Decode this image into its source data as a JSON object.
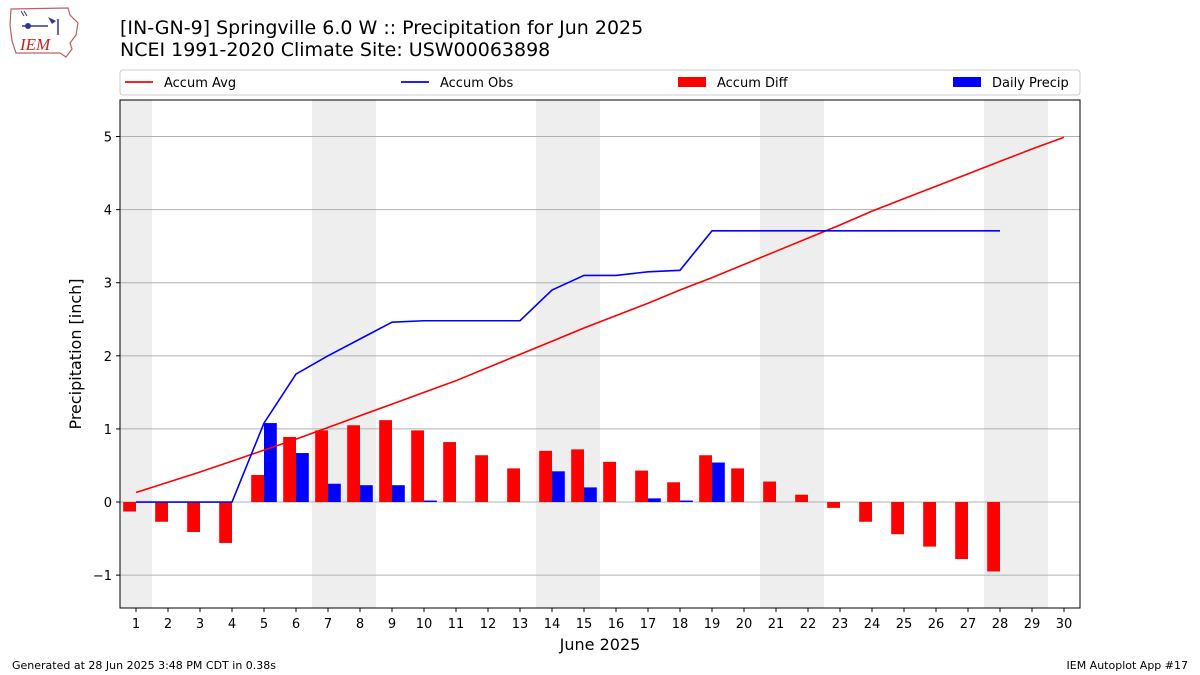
{
  "header": {
    "title_line1": "[IN-GN-9] Springville 6.0 W :: Precipitation for Jun 2025",
    "title_line2": "NCEI 1991-2020 Climate Site: USW00063898",
    "logo_text": "IEM"
  },
  "footer": {
    "generated": "Generated at 28 Jun 2025 3:48 PM CDT in 0.38s",
    "app": "IEM Autoplot App #17"
  },
  "chart_data": {
    "type": "bar",
    "xlabel": "June 2025",
    "ylabel": "Precipitation [inch]",
    "ylim": [
      -1.45,
      5.5
    ],
    "xlim": [
      0.5,
      30.5
    ],
    "yticks": [
      -1,
      0,
      1,
      2,
      3,
      4,
      5
    ],
    "ytick_labels": [
      "−1",
      "0",
      "1",
      "2",
      "3",
      "4",
      "5"
    ],
    "categories": [
      "1",
      "2",
      "3",
      "4",
      "5",
      "6",
      "7",
      "8",
      "9",
      "10",
      "11",
      "12",
      "13",
      "14",
      "15",
      "16",
      "17",
      "18",
      "19",
      "20",
      "21",
      "22",
      "23",
      "24",
      "25",
      "26",
      "27",
      "28",
      "29",
      "30"
    ],
    "grid": "horizontal",
    "legend_position": "top",
    "weekend_shading": [
      [
        0.5,
        1.5
      ],
      [
        6.5,
        8.5
      ],
      [
        13.5,
        15.5
      ],
      [
        20.5,
        22.5
      ],
      [
        27.5,
        29.5
      ]
    ],
    "colors": {
      "accum_avg": "#ff0000",
      "accum_obs": "#0000ff",
      "accum_diff": "#ff0000",
      "daily_precip": "#0000ff",
      "weekend": "#eeeeee",
      "grid": "#b0b0b0"
    },
    "series": [
      {
        "name": "Accum Avg",
        "type": "line",
        "x": [
          1,
          2,
          3,
          4,
          5,
          6,
          7,
          8,
          9,
          10,
          11,
          12,
          13,
          14,
          15,
          16,
          17,
          18,
          19,
          20,
          21,
          22,
          23,
          24,
          25,
          26,
          27,
          28,
          29,
          30
        ],
        "values": [
          0.13,
          0.27,
          0.41,
          0.56,
          0.71,
          0.86,
          1.02,
          1.18,
          1.34,
          1.5,
          1.66,
          1.84,
          2.02,
          2.2,
          2.38,
          2.55,
          2.72,
          2.9,
          3.07,
          3.25,
          3.43,
          3.61,
          3.79,
          3.98,
          4.15,
          4.32,
          4.49,
          4.66,
          4.83,
          4.99
        ]
      },
      {
        "name": "Accum Obs",
        "type": "line",
        "x": [
          1,
          2,
          3,
          4,
          5,
          6,
          7,
          8,
          9,
          10,
          11,
          12,
          13,
          14,
          15,
          16,
          17,
          18,
          19,
          20,
          21,
          22,
          23,
          24,
          25,
          26,
          27,
          28
        ],
        "values": [
          0,
          0,
          0,
          0,
          1.08,
          1.75,
          2.0,
          2.23,
          2.46,
          2.48,
          2.48,
          2.48,
          2.48,
          2.9,
          3.1,
          3.1,
          3.15,
          3.17,
          3.71,
          3.71,
          3.71,
          3.71,
          3.71,
          3.71,
          3.71,
          3.71,
          3.71,
          3.71
        ]
      },
      {
        "name": "Accum Diff",
        "type": "bar",
        "x": [
          1,
          2,
          3,
          4,
          5,
          6,
          7,
          8,
          9,
          10,
          11,
          12,
          13,
          14,
          15,
          16,
          17,
          18,
          19,
          20,
          21,
          22,
          23,
          24,
          25,
          26,
          27,
          28
        ],
        "values": [
          -0.13,
          -0.27,
          -0.41,
          -0.56,
          0.37,
          0.89,
          0.98,
          1.05,
          1.12,
          0.98,
          0.82,
          0.64,
          0.46,
          0.7,
          0.72,
          0.55,
          0.43,
          0.27,
          0.64,
          0.46,
          0.28,
          0.1,
          -0.08,
          -0.27,
          -0.44,
          -0.61,
          -0.78,
          -0.95
        ]
      },
      {
        "name": "Daily Precip",
        "type": "bar",
        "x": [
          1,
          2,
          3,
          4,
          5,
          6,
          7,
          8,
          9,
          10,
          11,
          12,
          13,
          14,
          15,
          16,
          17,
          18,
          19,
          20,
          21,
          22,
          23,
          24,
          25,
          26,
          27,
          28
        ],
        "values": [
          0,
          0,
          0,
          0,
          1.08,
          0.67,
          0.25,
          0.23,
          0.23,
          0.02,
          0,
          0,
          0,
          0.42,
          0.2,
          0,
          0.05,
          0.02,
          0.54,
          0,
          0,
          0,
          0,
          0,
          0,
          0,
          0,
          0
        ]
      }
    ]
  }
}
